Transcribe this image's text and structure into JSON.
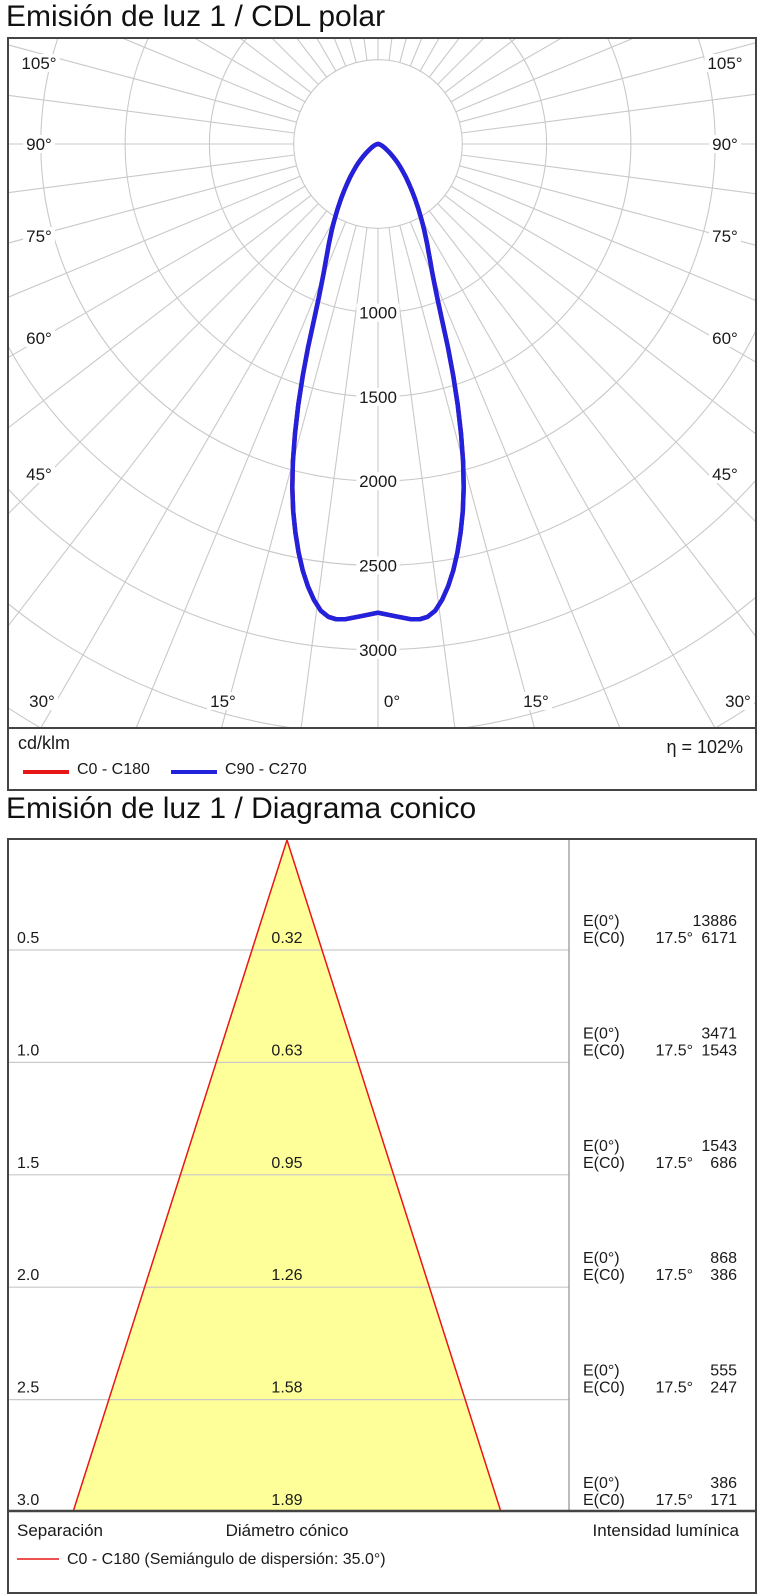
{
  "polar": {
    "title": "Emisión de luz 1 / CDL polar",
    "unit": "cd/klm",
    "efficiency": "η = 102%",
    "legend": [
      {
        "name": "C0 - C180",
        "color": "#e81717"
      },
      {
        "name": "C90 - C270",
        "color": "#2222dd"
      }
    ]
  },
  "cone": {
    "title": "Emisión de luz 1 / Diagrama conico",
    "columns": {
      "separation": "Separación",
      "diameter": "Diámetro cónico",
      "intensity": "Intensidad lumínica"
    },
    "legend": {
      "name": "C0 - C180 (Semiángulo de dispersión: 35.0°)",
      "color": "#e81717"
    }
  },
  "chart_data": [
    {
      "type": "polar",
      "title": "Emisión de luz 1 / CDL polar",
      "unit": "cd/klm",
      "efficiency_percent": 102,
      "ring_step_cdklm": 500,
      "ring_labels": [
        "1000",
        "1500",
        "2000",
        "2500",
        "3000"
      ],
      "ring_label_values": [
        1000,
        1500,
        2000,
        2500,
        3000
      ],
      "spoke_step_deg": 7.5,
      "angle_labels_left": [
        "105°",
        "90°",
        "75°",
        "60°",
        "45°"
      ],
      "angle_labels_right": [
        "105°",
        "90°",
        "75°",
        "60°",
        "45°"
      ],
      "angle_labels_bottom": [
        "30°",
        "15°",
        "0°",
        "15°",
        "30°"
      ],
      "grid_color": "#c9c9c9",
      "series": [
        {
          "name": "C0 - C180",
          "color": "#e81717",
          "symmetric": true,
          "points_deg_cdklm": [
            [
              0,
              2780
            ],
            [
              2,
              2802
            ],
            [
              4,
              2826
            ],
            [
              5,
              2830
            ],
            [
              6,
              2820
            ],
            [
              7,
              2788
            ],
            [
              8,
              2730
            ],
            [
              9,
              2656
            ],
            [
              10,
              2570
            ],
            [
              11,
              2468
            ],
            [
              12,
              2356
            ],
            [
              13,
              2236
            ],
            [
              14,
              2100
            ],
            [
              15,
              1950
            ],
            [
              16,
              1786
            ],
            [
              17,
              1616
            ],
            [
              18,
              1444
            ],
            [
              19,
              1274
            ],
            [
              20,
              1110
            ],
            [
              21,
              985
            ],
            [
              22,
              893
            ],
            [
              23,
              820
            ],
            [
              24,
              762
            ],
            [
              25,
              712
            ],
            [
              26,
              668
            ],
            [
              27,
              626
            ],
            [
              28,
              587
            ],
            [
              29,
              550
            ],
            [
              30,
              515
            ],
            [
              32,
              450
            ],
            [
              34,
              392
            ],
            [
              36,
              341
            ],
            [
              38,
              297
            ],
            [
              40,
              257
            ],
            [
              42,
              222
            ],
            [
              44,
              191
            ],
            [
              46,
              163
            ],
            [
              48,
              138
            ],
            [
              50,
              116
            ],
            [
              53,
              88
            ],
            [
              56,
              66
            ],
            [
              60,
              47
            ],
            [
              65,
              30
            ],
            [
              70,
              18
            ],
            [
              75,
              11
            ],
            [
              80,
              5
            ],
            [
              85,
              2
            ],
            [
              90,
              0
            ]
          ]
        },
        {
          "name": "C90 - C270",
          "color": "#2222dd",
          "symmetric": true,
          "points_deg_cdklm": [
            [
              0,
              2780
            ],
            [
              2,
              2802
            ],
            [
              4,
              2826
            ],
            [
              5,
              2830
            ],
            [
              6,
              2820
            ],
            [
              7,
              2788
            ],
            [
              8,
              2730
            ],
            [
              9,
              2656
            ],
            [
              10,
              2570
            ],
            [
              11,
              2468
            ],
            [
              12,
              2356
            ],
            [
              13,
              2236
            ],
            [
              14,
              2100
            ],
            [
              15,
              1950
            ],
            [
              16,
              1786
            ],
            [
              17,
              1616
            ],
            [
              18,
              1444
            ],
            [
              19,
              1274
            ],
            [
              20,
              1110
            ],
            [
              21,
              985
            ],
            [
              22,
              893
            ],
            [
              23,
              820
            ],
            [
              24,
              762
            ],
            [
              25,
              712
            ],
            [
              26,
              668
            ],
            [
              27,
              626
            ],
            [
              28,
              587
            ],
            [
              29,
              550
            ],
            [
              30,
              515
            ],
            [
              32,
              450
            ],
            [
              34,
              392
            ],
            [
              36,
              341
            ],
            [
              38,
              297
            ],
            [
              40,
              257
            ],
            [
              42,
              222
            ],
            [
              44,
              191
            ],
            [
              46,
              163
            ],
            [
              48,
              138
            ],
            [
              50,
              116
            ],
            [
              53,
              88
            ],
            [
              56,
              66
            ],
            [
              60,
              47
            ],
            [
              65,
              30
            ],
            [
              70,
              18
            ],
            [
              75,
              11
            ],
            [
              80,
              5
            ],
            [
              85,
              2
            ],
            [
              90,
              0
            ]
          ]
        }
      ]
    },
    {
      "type": "cone-diagram",
      "beam_half_angle_deg": 17.5,
      "fill_color": "#ffff99",
      "line_color": "#e81717",
      "e_labels": [
        "E(0°)",
        "E(C0)"
      ],
      "rows": [
        {
          "separation_m": "0.5",
          "cone_diameter_m": "0.32",
          "E0": "13886",
          "EC0_angle": "17.5°",
          "EC0": "6171"
        },
        {
          "separation_m": "1.0",
          "cone_diameter_m": "0.63",
          "E0": "3471",
          "EC0_angle": "17.5°",
          "EC0": "1543"
        },
        {
          "separation_m": "1.5",
          "cone_diameter_m": "0.95",
          "E0": "1543",
          "EC0_angle": "17.5°",
          "EC0": "686"
        },
        {
          "separation_m": "2.0",
          "cone_diameter_m": "1.26",
          "E0": "868",
          "EC0_angle": "17.5°",
          "EC0": "386"
        },
        {
          "separation_m": "2.5",
          "cone_diameter_m": "1.58",
          "E0": "555",
          "EC0_angle": "17.5°",
          "EC0": "247"
        },
        {
          "separation_m": "3.0",
          "cone_diameter_m": "1.89",
          "E0": "386",
          "EC0_angle": "17.5°",
          "EC0": "171"
        }
      ]
    }
  ]
}
